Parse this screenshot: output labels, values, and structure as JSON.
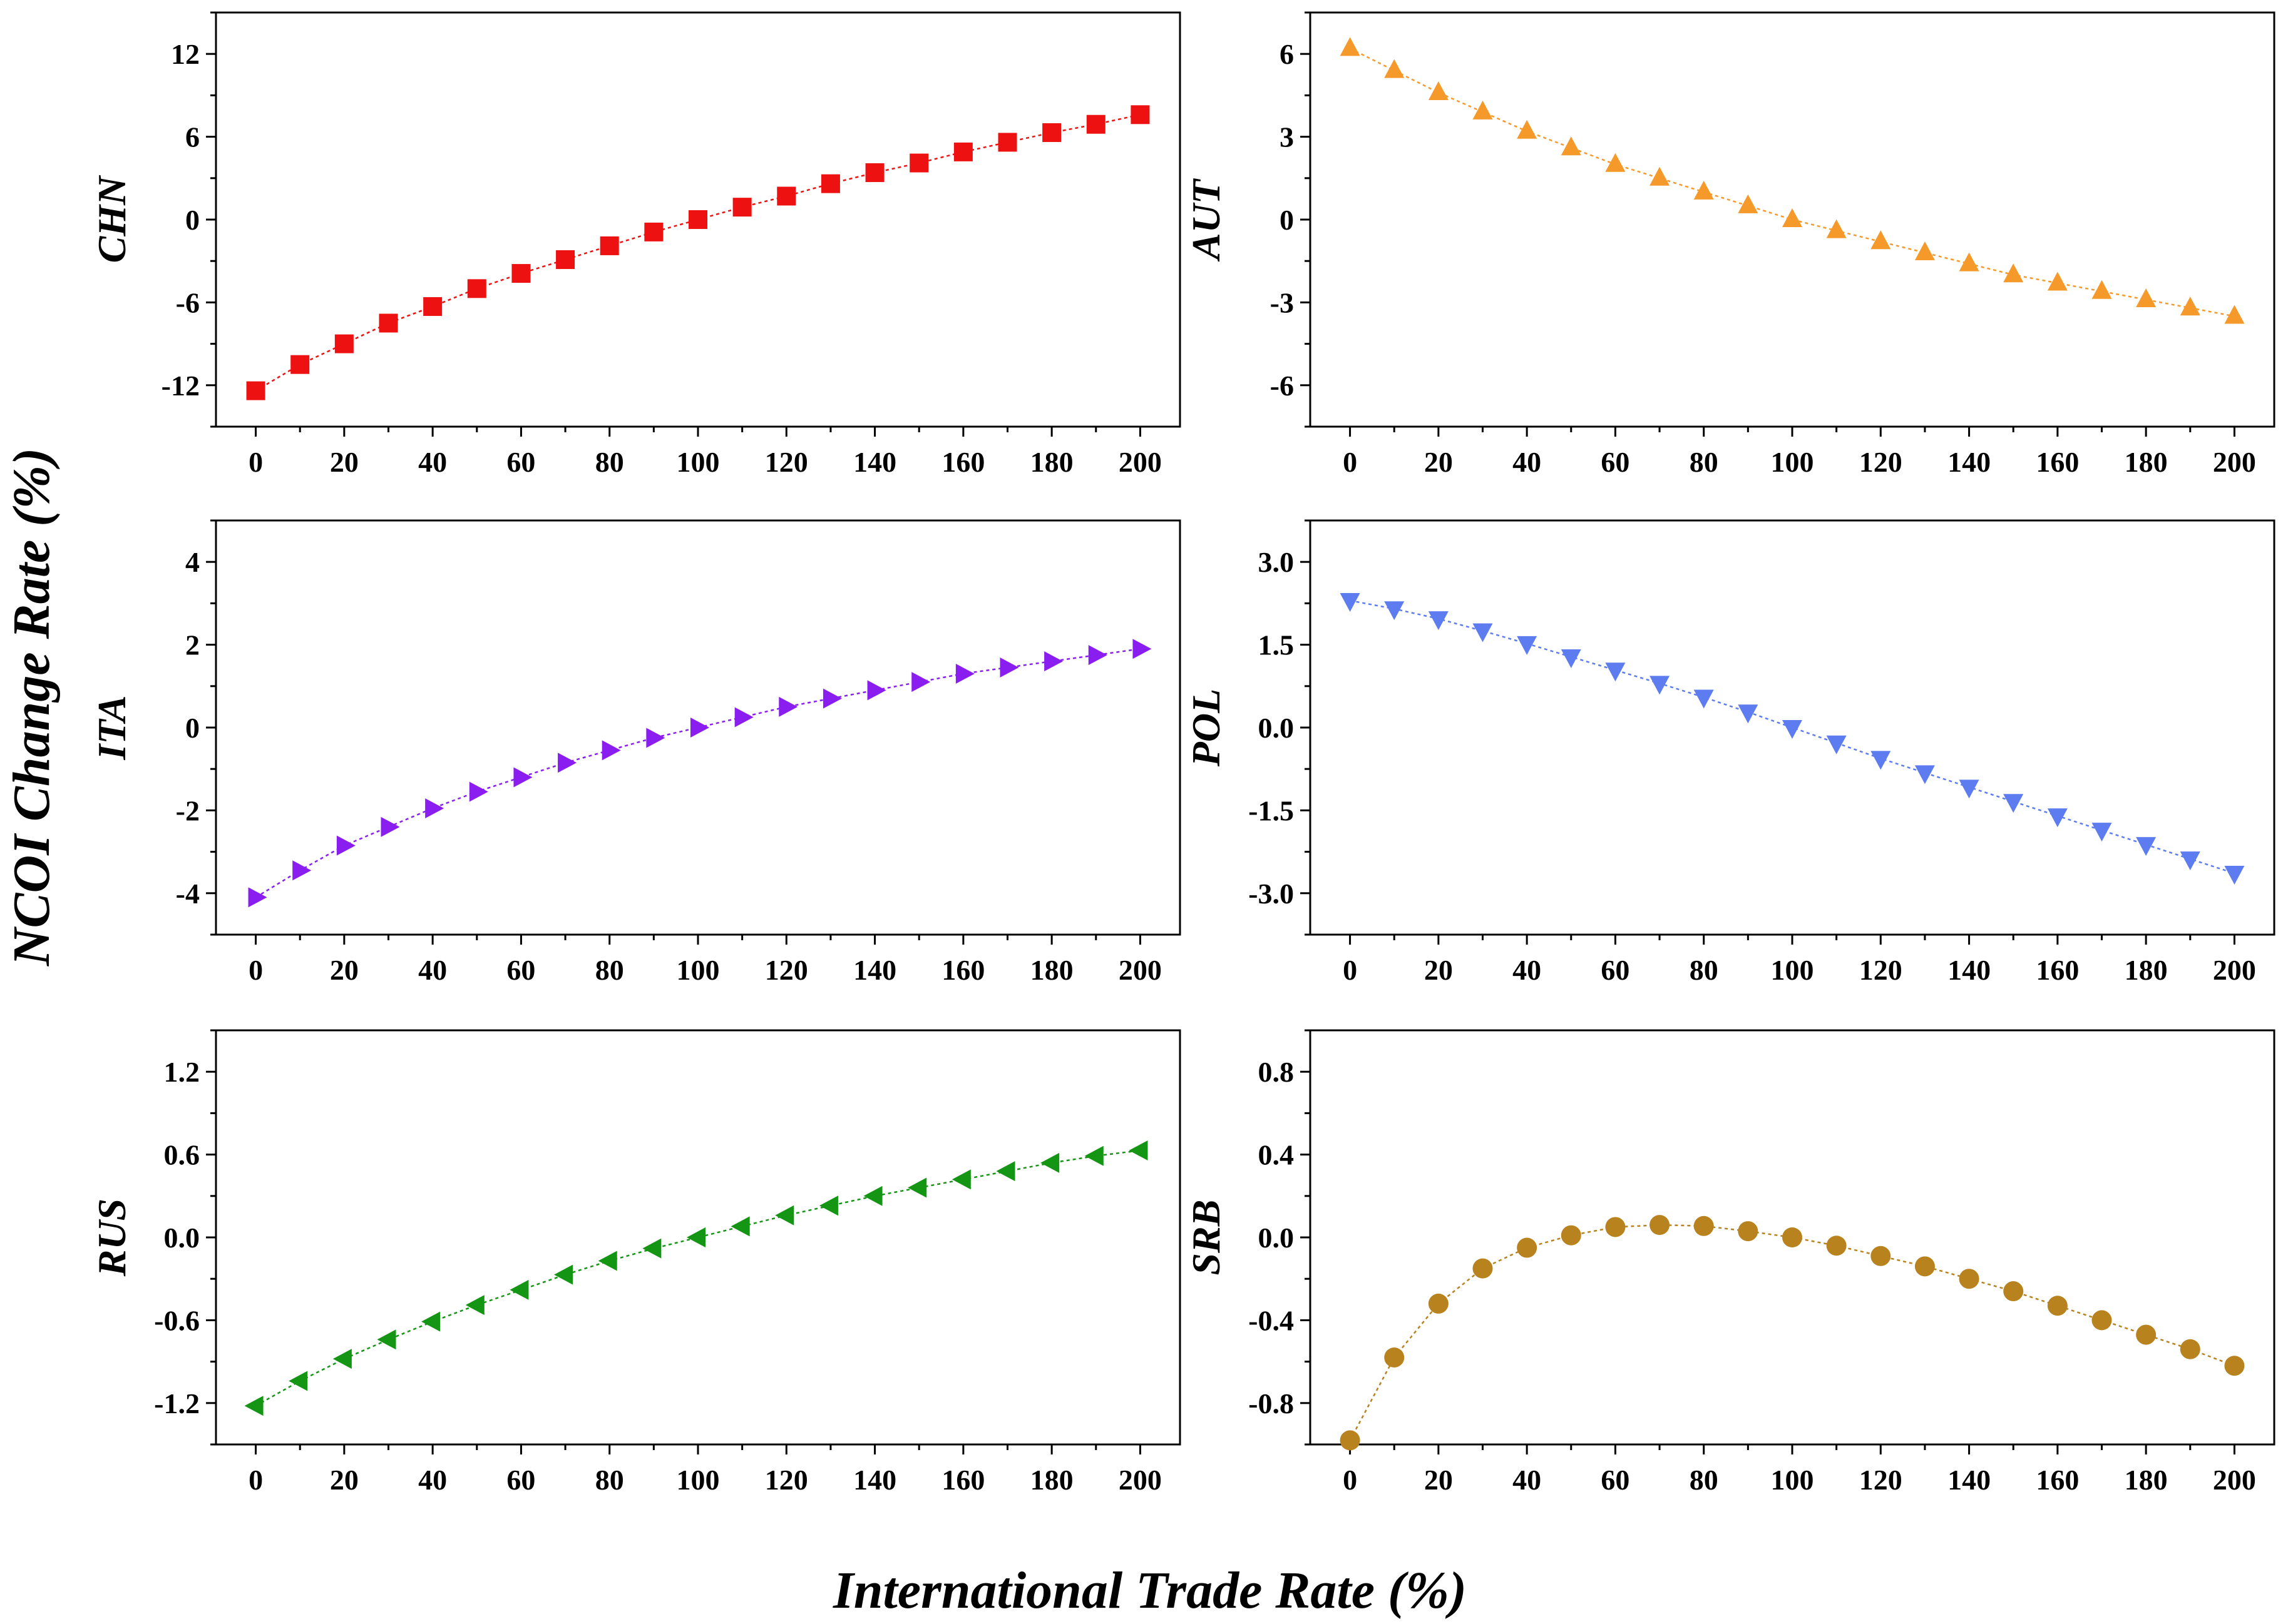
{
  "figure": {
    "ylabel": "NCOI Change Rate (%)",
    "xlabel": "International Trade Rate (%)"
  },
  "chart_data": [
    {
      "type": "line",
      "label": "CHN",
      "color": "#ee1111",
      "marker": "square",
      "x": [
        0,
        10,
        20,
        30,
        40,
        50,
        60,
        70,
        80,
        90,
        100,
        110,
        120,
        130,
        140,
        150,
        160,
        170,
        180,
        190,
        200
      ],
      "values": [
        -12.4,
        -10.5,
        -9.0,
        -7.5,
        -6.3,
        -5.0,
        -3.9,
        -2.9,
        -1.9,
        -0.9,
        0.0,
        0.9,
        1.7,
        2.6,
        3.4,
        4.1,
        4.9,
        5.6,
        6.3,
        6.9,
        7.6
      ],
      "ylim": [
        -15,
        15
      ],
      "yticks": [
        -12,
        -6,
        0,
        6,
        12
      ],
      "ytick_labels": [
        "-12",
        "-6",
        "0",
        "6",
        "12"
      ],
      "xlim": [
        -9,
        209
      ],
      "xticks": [
        0,
        20,
        40,
        60,
        80,
        100,
        120,
        140,
        160,
        180,
        200
      ],
      "xtick_labels": [
        "0",
        "20",
        "40",
        "60",
        "80",
        "100",
        "120",
        "140",
        "160",
        "180",
        "200"
      ]
    },
    {
      "type": "line",
      "label": "AUT",
      "color": "#f59a2a",
      "marker": "triangle-up",
      "x": [
        0,
        10,
        20,
        30,
        40,
        50,
        60,
        70,
        80,
        90,
        100,
        110,
        120,
        130,
        140,
        150,
        160,
        170,
        180,
        190,
        200
      ],
      "values": [
        6.2,
        5.4,
        4.6,
        3.9,
        3.2,
        2.6,
        2.0,
        1.5,
        1.0,
        0.5,
        0.0,
        -0.4,
        -0.8,
        -1.2,
        -1.6,
        -2.0,
        -2.3,
        -2.6,
        -2.9,
        -3.2,
        -3.5
      ],
      "ylim": [
        -7.5,
        7.5
      ],
      "yticks": [
        -6,
        -3,
        0,
        3,
        6
      ],
      "ytick_labels": [
        "-6",
        "-3",
        "0",
        "3",
        "6"
      ],
      "xlim": [
        -9,
        209
      ],
      "xticks": [
        0,
        20,
        40,
        60,
        80,
        100,
        120,
        140,
        160,
        180,
        200
      ],
      "xtick_labels": [
        "0",
        "20",
        "40",
        "60",
        "80",
        "100",
        "120",
        "140",
        "160",
        "180",
        "200"
      ]
    },
    {
      "type": "line",
      "label": "ITA",
      "color": "#8a1ef0",
      "marker": "triangle-right",
      "x": [
        0,
        10,
        20,
        30,
        40,
        50,
        60,
        70,
        80,
        90,
        100,
        110,
        120,
        130,
        140,
        150,
        160,
        170,
        180,
        190,
        200
      ],
      "values": [
        -4.1,
        -3.45,
        -2.85,
        -2.4,
        -1.95,
        -1.55,
        -1.2,
        -0.85,
        -0.55,
        -0.25,
        0.0,
        0.25,
        0.5,
        0.7,
        0.9,
        1.1,
        1.3,
        1.45,
        1.6,
        1.75,
        1.9
      ],
      "ylim": [
        -5,
        5
      ],
      "yticks": [
        -4,
        -2,
        0,
        2,
        4
      ],
      "ytick_labels": [
        "-4",
        "-2",
        "0",
        "2",
        "4"
      ],
      "xlim": [
        -9,
        209
      ],
      "xticks": [
        0,
        20,
        40,
        60,
        80,
        100,
        120,
        140,
        160,
        180,
        200
      ],
      "xtick_labels": [
        "0",
        "20",
        "40",
        "60",
        "80",
        "100",
        "120",
        "140",
        "160",
        "180",
        "200"
      ]
    },
    {
      "type": "line",
      "label": "POL",
      "color": "#5d7cf0",
      "marker": "triangle-down",
      "x": [
        0,
        10,
        20,
        30,
        40,
        50,
        60,
        70,
        80,
        90,
        100,
        110,
        120,
        130,
        140,
        150,
        160,
        170,
        180,
        190,
        200
      ],
      "values": [
        2.3,
        2.15,
        1.97,
        1.75,
        1.52,
        1.28,
        1.04,
        0.8,
        0.55,
        0.28,
        0.0,
        -0.28,
        -0.56,
        -0.82,
        -1.08,
        -1.34,
        -1.6,
        -1.86,
        -2.12,
        -2.38,
        -2.64
      ],
      "ylim": [
        -3.75,
        3.75
      ],
      "yticks": [
        -3.0,
        -1.5,
        0.0,
        1.5,
        3.0
      ],
      "ytick_labels": [
        "-3.0",
        "-1.5",
        "0.0",
        "1.5",
        "3.0"
      ],
      "xlim": [
        -9,
        209
      ],
      "xticks": [
        0,
        20,
        40,
        60,
        80,
        100,
        120,
        140,
        160,
        180,
        200
      ],
      "xtick_labels": [
        "0",
        "20",
        "40",
        "60",
        "80",
        "100",
        "120",
        "140",
        "160",
        "180",
        "200"
      ]
    },
    {
      "type": "line",
      "label": "RUS",
      "color": "#149614",
      "marker": "triangle-left",
      "x": [
        0,
        10,
        20,
        30,
        40,
        50,
        60,
        70,
        80,
        90,
        100,
        110,
        120,
        130,
        140,
        150,
        160,
        170,
        180,
        190,
        200
      ],
      "values": [
        -1.22,
        -1.04,
        -0.88,
        -0.74,
        -0.61,
        -0.49,
        -0.38,
        -0.27,
        -0.17,
        -0.08,
        0.0,
        0.08,
        0.16,
        0.23,
        0.3,
        0.36,
        0.42,
        0.48,
        0.54,
        0.59,
        0.63
      ],
      "ylim": [
        -1.5,
        1.5
      ],
      "yticks": [
        -1.2,
        -0.6,
        0.0,
        0.6,
        1.2
      ],
      "ytick_labels": [
        "-1.2",
        "-0.6",
        "0.0",
        "0.6",
        "1.2"
      ],
      "xlim": [
        -9,
        209
      ],
      "xticks": [
        0,
        20,
        40,
        60,
        80,
        100,
        120,
        140,
        160,
        180,
        200
      ],
      "xtick_labels": [
        "0",
        "20",
        "40",
        "60",
        "80",
        "100",
        "120",
        "140",
        "160",
        "180",
        "200"
      ]
    },
    {
      "type": "line",
      "label": "SRB",
      "color": "#b8821e",
      "marker": "circle",
      "x": [
        0,
        10,
        20,
        30,
        40,
        50,
        60,
        70,
        80,
        90,
        100,
        110,
        120,
        130,
        140,
        150,
        160,
        170,
        180,
        190,
        200
      ],
      "values": [
        -0.98,
        -0.58,
        -0.32,
        -0.15,
        -0.05,
        0.01,
        0.05,
        0.06,
        0.055,
        0.03,
        0.0,
        -0.04,
        -0.09,
        -0.14,
        -0.2,
        -0.26,
        -0.33,
        -0.4,
        -0.47,
        -0.54,
        -0.62
      ],
      "ylim": [
        -1.0,
        1.0
      ],
      "yticks": [
        -0.8,
        -0.4,
        0.0,
        0.4,
        0.8
      ],
      "ytick_labels": [
        "-0.8",
        "-0.4",
        "0.0",
        "0.4",
        "0.8"
      ],
      "xlim": [
        -9,
        209
      ],
      "xticks": [
        0,
        20,
        40,
        60,
        80,
        100,
        120,
        140,
        160,
        180,
        200
      ],
      "xtick_labels": [
        "0",
        "20",
        "40",
        "60",
        "80",
        "100",
        "120",
        "140",
        "160",
        "180",
        "200"
      ]
    }
  ]
}
